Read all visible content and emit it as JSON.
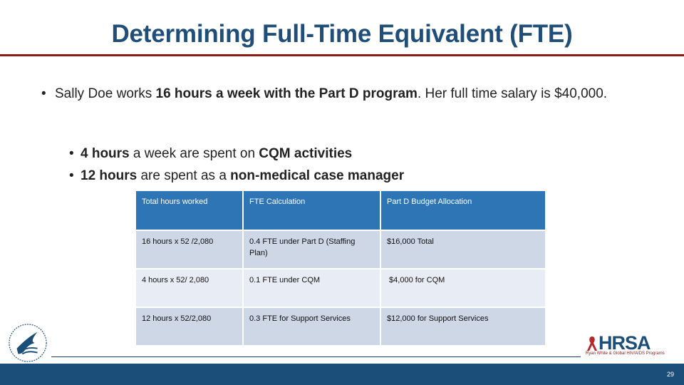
{
  "slide": {
    "title": "Determining Full-Time Equivalent (FTE)",
    "bullet_main": {
      "t1": "Sally Doe works ",
      "b1": "16 hours a week with the Part D program",
      "t2": ". Her full time salary is $40,000."
    },
    "sub_bullets": [
      {
        "bold": "4 hours",
        "text": " a week are spent on ",
        "bold2": "CQM activities"
      },
      {
        "bold": "12 hours",
        "text": " are spent as a ",
        "bold2": "non-medical case manager"
      }
    ],
    "table": {
      "headers": [
        "Total hours worked",
        "FTE Calculation",
        "Part D Budget Allocation"
      ],
      "rows": [
        [
          "16 hours x 52 /2,080",
          "0.4 FTE under Part D (Staffing Plan)",
          "$16,000 Total"
        ],
        [
          "4 hours x 52/ 2,080",
          "0.1 FTE under CQM",
          " $4,000 for CQM"
        ],
        [
          "12 hours x 52/2,080",
          "0.3 FTE for Support Services",
          "$12,000 for Support Services"
        ]
      ]
    },
    "footer": {
      "page_number": "29",
      "hrsa_logo_text": "HRSA",
      "hrsa_tagline": "Ryan White & Global HIV/AIDS Programs"
    }
  },
  "colors": {
    "title": "#1f4e79",
    "rule": "#8b1a1a",
    "table_header": "#2e75b6",
    "table_row_dark": "#cdd7e6",
    "table_row_light": "#e8ecf4",
    "footer_bar": "#1b4f7a"
  },
  "icons": [
    "hhs-eagle-logo",
    "hrsa-logo"
  ]
}
